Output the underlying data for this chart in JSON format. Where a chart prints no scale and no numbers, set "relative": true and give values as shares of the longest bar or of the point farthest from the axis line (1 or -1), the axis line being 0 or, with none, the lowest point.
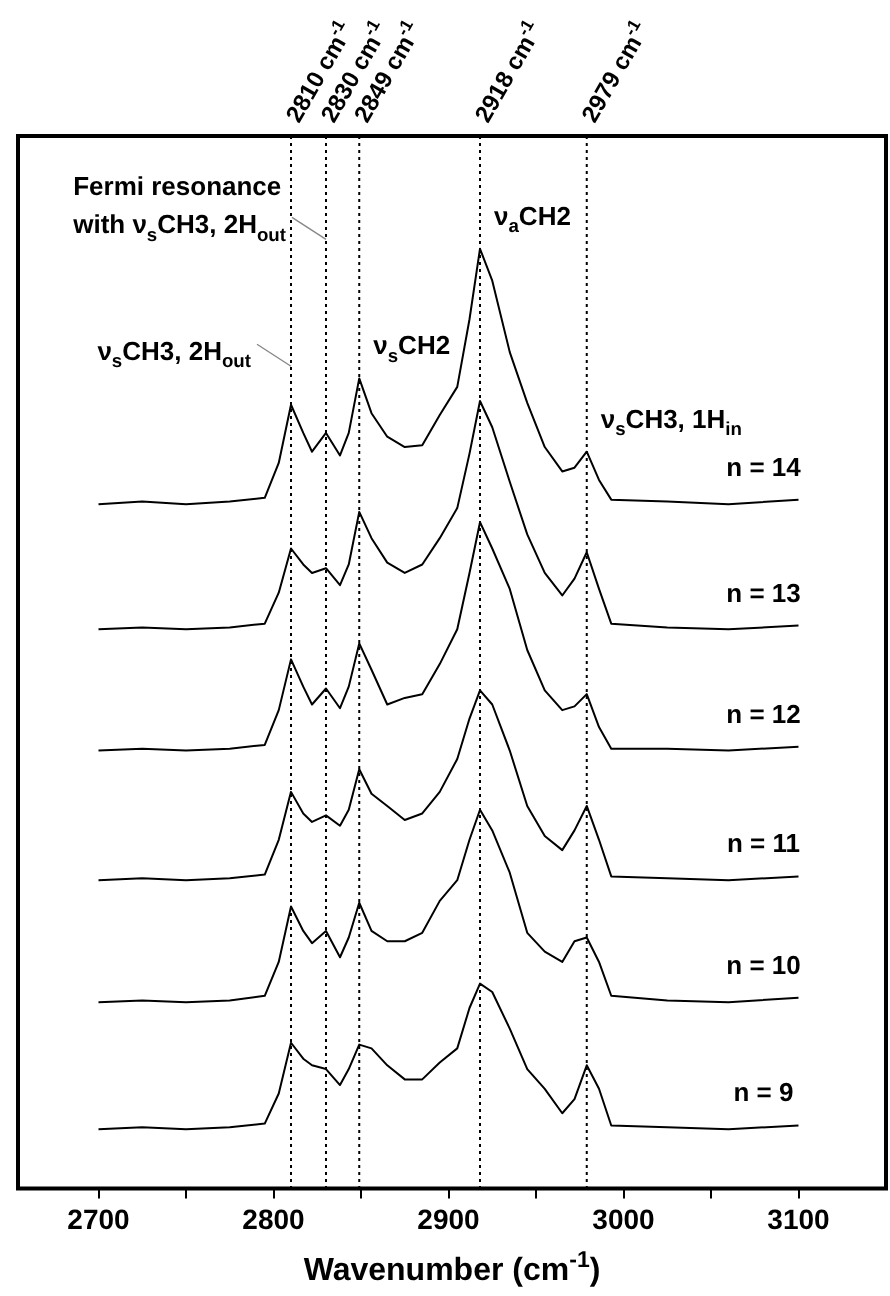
{
  "chart_data": {
    "type": "line",
    "relative": true,
    "xlabel": "Wavenumber (cm$^{-1}$)",
    "xlim": [
      2654,
      3150
    ],
    "xticks": [
      2700,
      {
        "value": 2750,
        "label": null
      },
      2800,
      {
        "value": 2850,
        "label": null
      },
      2900,
      {
        "value": 2950,
        "label": null
      },
      3000,
      {
        "value": 3050,
        "label": null
      },
      3100
    ],
    "x": [
      2700,
      2725,
      2750,
      2775,
      2795,
      2803,
      2810,
      2817,
      2822,
      2830,
      2838,
      2843,
      2849,
      2856,
      2865,
      2875,
      2885,
      2895,
      2905,
      2912,
      2918,
      2925,
      2935,
      2945,
      2955,
      2965,
      2972,
      2979,
      2986,
      2993,
      3025,
      3060,
      3100
    ],
    "series": [
      {
        "name": "n = 14",
        "color": "#000000",
        "values": [
          0.728,
          0.731,
          0.728,
          0.731,
          0.735,
          0.772,
          0.834,
          0.804,
          0.784,
          0.804,
          0.78,
          0.804,
          0.862,
          0.825,
          0.8,
          0.789,
          0.791,
          0.823,
          0.853,
          0.925,
          1,
          0.966,
          0.89,
          0.836,
          0.789,
          0.763,
          0.767,
          0.784,
          0.754,
          0.733,
          0.731,
          0.728,
          0.733
        ]
      },
      {
        "name": "n = 13",
        "color": "#000000",
        "values": [
          0.595,
          0.597,
          0.595,
          0.597,
          0.601,
          0.634,
          0.681,
          0.664,
          0.655,
          0.66,
          0.642,
          0.664,
          0.72,
          0.692,
          0.666,
          0.655,
          0.664,
          0.692,
          0.724,
          0.782,
          0.838,
          0.81,
          0.752,
          0.696,
          0.655,
          0.631,
          0.649,
          0.677,
          0.638,
          0.601,
          0.597,
          0.595,
          0.599
        ]
      },
      {
        "name": "n = 12",
        "color": "#000000",
        "values": [
          0.466,
          0.468,
          0.466,
          0.468,
          0.472,
          0.509,
          0.563,
          0.534,
          0.515,
          0.532,
          0.511,
          0.534,
          0.58,
          0.552,
          0.515,
          0.522,
          0.526,
          0.558,
          0.595,
          0.655,
          0.709,
          0.681,
          0.638,
          0.573,
          0.53,
          0.509,
          0.513,
          0.526,
          0.491,
          0.468,
          0.468,
          0.466,
          0.47
        ]
      },
      {
        "name": "n = 11",
        "color": "#000000",
        "values": [
          0.328,
          0.33,
          0.328,
          0.33,
          0.334,
          0.371,
          0.422,
          0.399,
          0.39,
          0.397,
          0.386,
          0.403,
          0.446,
          0.42,
          0.407,
          0.392,
          0.399,
          0.422,
          0.457,
          0.5,
          0.53,
          0.515,
          0.466,
          0.407,
          0.375,
          0.36,
          0.381,
          0.407,
          0.371,
          0.332,
          0.33,
          0.328,
          0.332
        ]
      },
      {
        "name": "n = 10",
        "color": "#000000",
        "values": [
          0.198,
          0.2,
          0.198,
          0.2,
          0.205,
          0.241,
          0.3,
          0.274,
          0.261,
          0.274,
          0.246,
          0.267,
          0.304,
          0.274,
          0.263,
          0.263,
          0.272,
          0.306,
          0.328,
          0.371,
          0.403,
          0.381,
          0.336,
          0.272,
          0.252,
          0.241,
          0.263,
          0.267,
          0.241,
          0.205,
          0.2,
          0.198,
          0.203
        ]
      },
      {
        "name": "n = 9",
        "color": "#000000",
        "values": [
          0.063,
          0.065,
          0.063,
          0.065,
          0.069,
          0.101,
          0.155,
          0.138,
          0.131,
          0.127,
          0.11,
          0.127,
          0.153,
          0.149,
          0.131,
          0.116,
          0.116,
          0.134,
          0.149,
          0.192,
          0.218,
          0.209,
          0.17,
          0.127,
          0.106,
          0.08,
          0.095,
          0.131,
          0.106,
          0.067,
          0.065,
          0.063,
          0.067
        ]
      }
    ],
    "ref_lines": [
      {
        "axis": "x",
        "value": 2810,
        "label": "2810 cm$^{-1}$",
        "line_style": "dotted"
      },
      {
        "axis": "x",
        "value": 2830,
        "label": "2830 cm$^{-1}$",
        "line_style": "dotted"
      },
      {
        "axis": "x",
        "value": 2849,
        "label": "2849 cm$^{-1}$",
        "line_style": "dotted"
      },
      {
        "axis": "x",
        "value": 2918,
        "label": "2918 cm$^{-1}$",
        "line_style": "dotted"
      },
      {
        "axis": "x",
        "value": 2979,
        "label": "2979 cm$^{-1}$",
        "line_style": "dotted"
      }
    ],
    "annotations": [
      {
        "text": "Fermi resonance with ν$_{s}$CH3, 2H$_{out}$",
        "x": 2830,
        "y": 1.01
      },
      {
        "text": "ν$_{s}$CH3, 2H$_{out}$",
        "x": 2810,
        "y": 0.875
      },
      {
        "text": "ν$_{s}$CH2",
        "x": 2849,
        "y": 0.862
      },
      {
        "text": "ν$_{a}$CH2",
        "x": 2918,
        "y": 1
      },
      {
        "text": "ν$_{s}$CH3, 1H$_{in}$",
        "x": 2979,
        "y": 0.784
      }
    ],
    "legend": false,
    "grid": false,
    "marker": "none",
    "line_style": "solid",
    "tick_labels": "x"
  }
}
